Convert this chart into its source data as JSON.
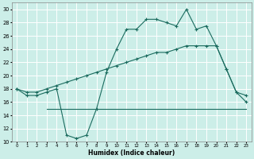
{
  "xlabel": "Humidex (Indice chaleur)",
  "bg_color": "#cceee8",
  "grid_color": "#ffffff",
  "line_color": "#1a6b5e",
  "xlim": [
    -0.5,
    23.5
  ],
  "ylim": [
    10,
    31
  ],
  "xticks": [
    0,
    1,
    2,
    3,
    4,
    5,
    6,
    7,
    8,
    9,
    10,
    11,
    12,
    13,
    14,
    15,
    16,
    17,
    18,
    19,
    20,
    21,
    22,
    23
  ],
  "yticks": [
    10,
    12,
    14,
    16,
    18,
    20,
    22,
    24,
    26,
    28,
    30
  ],
  "line1_x": [
    0,
    1,
    2,
    3,
    4,
    5,
    6,
    7,
    8,
    9,
    10,
    11,
    12,
    13,
    14,
    15,
    16,
    17,
    18,
    19,
    20,
    21,
    22,
    23
  ],
  "line1_y": [
    18,
    17,
    17,
    17.5,
    18,
    11,
    10.5,
    11,
    15,
    20.5,
    24,
    27,
    27,
    28.5,
    28.5,
    28,
    27.5,
    30,
    27,
    27.5,
    24.5,
    21,
    17.5,
    17
  ],
  "line2_x": [
    0,
    1,
    2,
    3,
    4,
    5,
    6,
    7,
    8,
    9,
    10,
    11,
    12,
    13,
    14,
    15,
    16,
    17,
    18,
    19,
    20,
    21,
    22,
    23
  ],
  "line2_y": [
    18,
    17.5,
    17.5,
    18,
    18.5,
    19,
    19.5,
    20,
    20.5,
    21,
    21.5,
    22,
    22.5,
    23,
    23.5,
    23.5,
    24,
    24.5,
    24.5,
    24.5,
    24.5,
    21,
    17.5,
    16
  ],
  "line3_x": [
    3,
    4,
    5,
    6,
    7,
    8,
    9,
    10,
    11,
    12,
    13,
    14,
    15,
    16,
    17,
    18,
    19,
    20,
    21,
    22,
    23
  ],
  "line3_y": [
    15,
    15,
    15,
    15,
    15,
    15,
    15,
    15,
    15,
    15,
    15,
    15,
    15,
    15,
    15,
    15,
    15,
    15,
    15,
    15,
    15
  ]
}
